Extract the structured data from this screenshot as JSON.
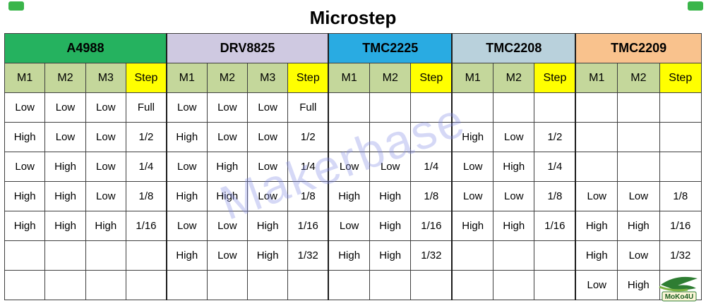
{
  "title": "Microstep",
  "watermark": "Makerbase",
  "logo_text": "MoKo4U",
  "colors": {
    "a4988": "#25b25f",
    "drv8825": "#cfc9e1",
    "tmc2225": "#29abe2",
    "tmc2208": "#b9d1dc",
    "tmc2209": "#f9c28d",
    "pin_header": "#c4d79b",
    "step_header": "#ffff00",
    "border": "#3f3f3f",
    "corner_mark": "#3ab54a",
    "watermark_color": "#8088e4"
  },
  "chart_data": {
    "type": "table",
    "title": "Microstep",
    "groups": [
      {
        "name": "A4988",
        "columns": [
          "M1",
          "M2",
          "M3",
          "Step"
        ]
      },
      {
        "name": "DRV8825",
        "columns": [
          "M1",
          "M2",
          "M3",
          "Step"
        ]
      },
      {
        "name": "TMC2225",
        "columns": [
          "M1",
          "M2",
          "Step"
        ]
      },
      {
        "name": "TMC2208",
        "columns": [
          "M1",
          "M2",
          "Step"
        ]
      },
      {
        "name": "TMC2209",
        "columns": [
          "M1",
          "M2",
          "Step"
        ]
      }
    ],
    "pin_headers": [
      "M1",
      "M2",
      "M3",
      "Step",
      "M1",
      "M2",
      "M3",
      "Step",
      "M1",
      "M2",
      "Step",
      "M1",
      "M2",
      "Step",
      "M1",
      "M2",
      "Step"
    ],
    "rows": [
      [
        "Low",
        "Low",
        "Low",
        "Full",
        "Low",
        "Low",
        "Low",
        "Full",
        "",
        "",
        "",
        "",
        "",
        "",
        "",
        "",
        ""
      ],
      [
        "High",
        "Low",
        "Low",
        "1/2",
        "High",
        "Low",
        "Low",
        "1/2",
        "",
        "",
        "",
        "High",
        "Low",
        "1/2",
        "",
        "",
        ""
      ],
      [
        "Low",
        "High",
        "Low",
        "1/4",
        "Low",
        "High",
        "Low",
        "1/4",
        "Low",
        "Low",
        "1/4",
        "Low",
        "High",
        "1/4",
        "",
        "",
        ""
      ],
      [
        "High",
        "High",
        "Low",
        "1/8",
        "High",
        "High",
        "Low",
        "1/8",
        "High",
        "High",
        "1/8",
        "Low",
        "Low",
        "1/8",
        "Low",
        "Low",
        "1/8"
      ],
      [
        "High",
        "High",
        "High",
        "1/16",
        "Low",
        "Low",
        "High",
        "1/16",
        "Low",
        "High",
        "1/16",
        "High",
        "High",
        "1/16",
        "High",
        "High",
        "1/16"
      ],
      [
        "",
        "",
        "",
        "",
        "High",
        "Low",
        "High",
        "1/32",
        "High",
        "High",
        "1/32",
        "",
        "",
        "",
        "High",
        "Low",
        "1/32"
      ],
      [
        "",
        "",
        "",
        "",
        "",
        "",
        "",
        "",
        "",
        "",
        "",
        "",
        "",
        "",
        "Low",
        "High",
        ""
      ]
    ]
  }
}
